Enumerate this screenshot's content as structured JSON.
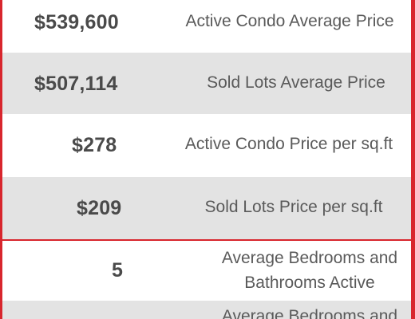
{
  "stats": [
    {
      "value": "$539,600",
      "label": "Active Condo Average Price"
    },
    {
      "value": "$507,114",
      "label": "Sold Lots Average Price"
    },
    {
      "value": "$278",
      "label": "Active Condo Price per sq.ft"
    },
    {
      "value": "$209",
      "label": "Sold Lots Price per sq.ft"
    },
    {
      "value": "5",
      "label_line1": "Average Bedrooms and",
      "label_line2": "Bathrooms Active"
    },
    {
      "value": "",
      "label_line1": "Average Bedrooms and",
      "label_line2": ""
    }
  ],
  "colors": {
    "frame_red": "#d8262d",
    "shaded_row": "#e3e3e3",
    "value_text": "#4a4a4a",
    "label_text": "#5a5a5a"
  }
}
